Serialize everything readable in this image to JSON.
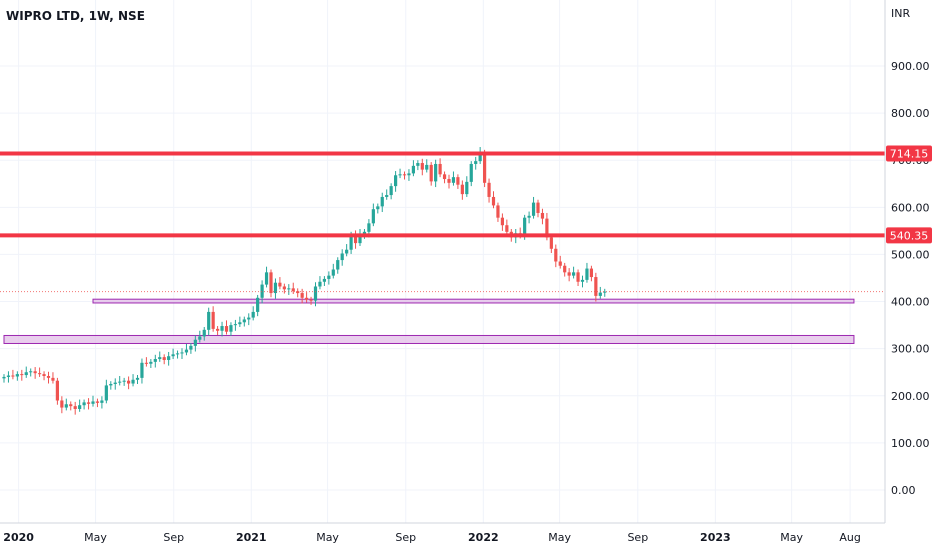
{
  "header": {
    "title": "WIPRO LTD, 1W, NSE",
    "currency": "INR"
  },
  "colors": {
    "up": "#26a69a",
    "down": "#ef5350",
    "level_line": "#f23645",
    "zone_fill": "#e1bee7",
    "zone_border": "#9c27b0",
    "grid": "#f0f3fa",
    "last_price_line": "#ef5350"
  },
  "chart_data": {
    "type": "candlestick",
    "title": "WIPRO LTD, 1W, NSE",
    "ylabel": "INR",
    "ylim": [
      -70,
      1040
    ],
    "y_ticks": [
      "900.00",
      "800.00",
      "700.00",
      "600.00",
      "500.00",
      "400.00",
      "300.00",
      "200.00",
      "100.00",
      "0.00"
    ],
    "x_ticks": [
      {
        "label": "2020",
        "bold": true
      },
      {
        "label": "May",
        "bold": false
      },
      {
        "label": "Sep",
        "bold": false
      },
      {
        "label": "2021",
        "bold": true
      },
      {
        "label": "May",
        "bold": false
      },
      {
        "label": "Sep",
        "bold": false
      },
      {
        "label": "2022",
        "bold": true
      },
      {
        "label": "May",
        "bold": false
      },
      {
        "label": "Sep",
        "bold": false
      },
      {
        "label": "2023",
        "bold": true
      },
      {
        "label": "May",
        "bold": false
      },
      {
        "label": "Aug",
        "bold": false
      }
    ],
    "start_date": "2019-12-09",
    "horizontal_levels": [
      {
        "value": 714.15,
        "label": "714.15"
      },
      {
        "value": 540.35,
        "label": "540.35"
      }
    ],
    "zones": [
      {
        "low": 397,
        "high": 405,
        "from": "2020-04-27",
        "to": "2023-08-07"
      },
      {
        "low": 311,
        "high": 328,
        "from": "2019-12-09",
        "to": "2023-08-07"
      }
    ],
    "last_price": 421,
    "closes": [
      240,
      243,
      241,
      246,
      244,
      250,
      252,
      248,
      246,
      242,
      238,
      232,
      190,
      175,
      182,
      178,
      172,
      180,
      186,
      183,
      188,
      185,
      190,
      222,
      225,
      228,
      230,
      232,
      226,
      234,
      238,
      270,
      268,
      272,
      278,
      282,
      276,
      284,
      288,
      290,
      292,
      298,
      306,
      319,
      326,
      340,
      378,
      342,
      338,
      348,
      336,
      350,
      352,
      356,
      362,
      366,
      378,
      408,
      436,
      462,
      418,
      440,
      432,
      426,
      428,
      422,
      418,
      408,
      404,
      402,
      432,
      442,
      448,
      455,
      468,
      488,
      502,
      510,
      542,
      524,
      542,
      548,
      566,
      596,
      602,
      622,
      626,
      645,
      668,
      670,
      668,
      672,
      688,
      694,
      680,
      690,
      655,
      692,
      670,
      660,
      652,
      664,
      648,
      628,
      654,
      692,
      698,
      716,
      652,
      622,
      604,
      578,
      562,
      548,
      536,
      545,
      540,
      578,
      582,
      610,
      588,
      576,
      536,
      512,
      485,
      476,
      462,
      455,
      462,
      442,
      446,
      470,
      452,
      412,
      419,
      421
    ]
  }
}
